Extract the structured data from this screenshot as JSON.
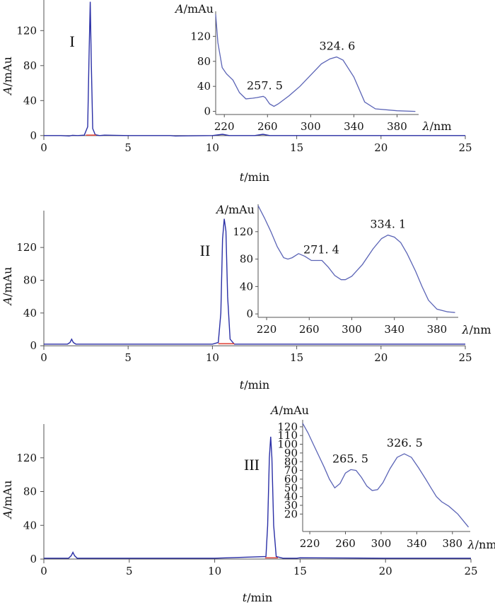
{
  "chart_data": [
    {
      "type": "line",
      "panel_label": "I",
      "xlabel": {
        "var": "t",
        "unit": "/min"
      },
      "ylabel": {
        "var": "A",
        "unit": "/mAu"
      },
      "xlim": [
        0,
        25
      ],
      "ylim": [
        -5,
        155
      ],
      "xticks": [
        0,
        5,
        10,
        15,
        20,
        25
      ],
      "yticks": [
        0,
        40,
        80,
        120
      ],
      "series": [
        {
          "name": "chromatogram",
          "x": [
            0,
            1,
            1.5,
            1.7,
            2.0,
            2.4,
            2.6,
            2.68,
            2.75,
            2.82,
            2.9,
            3.05,
            3.3,
            3.6,
            5,
            7.5,
            7.8,
            10,
            10.6,
            11.0,
            12.5,
            13.0,
            13.4,
            14.5,
            20,
            25
          ],
          "y": [
            0,
            0,
            -0.5,
            0.3,
            0,
            0.5,
            10,
            90,
            153,
            80,
            8,
            1,
            0,
            0.5,
            0,
            0,
            -0.5,
            0,
            1.5,
            0,
            0,
            1.5,
            0,
            0,
            0,
            0
          ]
        },
        {
          "name": "baseline",
          "x": [
            2.5,
            3.1
          ],
          "y": [
            0.5,
            0.5
          ]
        }
      ],
      "inset": {
        "type": "line",
        "xlabel": {
          "var": "λ",
          "unit": "/nm"
        },
        "ylabel": {
          "var": "A",
          "unit": "/mAu"
        },
        "xlim": [
          212,
          400
        ],
        "ylim": [
          -5,
          160
        ],
        "xticks": [
          220,
          260,
          300,
          340,
          380
        ],
        "yticks": [
          0,
          40,
          80,
          120
        ],
        "peak_labels": [
          {
            "x": 257.5,
            "y": 24,
            "text": "257. 5"
          },
          {
            "x": 324.6,
            "y": 87,
            "text": "324. 6"
          }
        ],
        "series": [
          {
            "name": "UV spectrum",
            "x": [
              212,
              214,
              218,
              222,
              228,
              234,
              240,
              246,
              250,
              256,
              258,
              262,
              266,
              270,
              280,
              290,
              300,
              310,
              318,
              324,
              330,
              340,
              350,
              360,
              380,
              397
            ],
            "y": [
              155,
              110,
              70,
              60,
              50,
              30,
              20,
              21,
              22,
              24,
              22,
              12,
              8,
              12,
              25,
              40,
              58,
              76,
              84,
              87,
              82,
              55,
              15,
              4,
              1,
              0
            ]
          }
        ]
      }
    },
    {
      "type": "line",
      "panel_label": "II",
      "xlabel": {
        "var": "t",
        "unit": "/min"
      },
      "ylabel": {
        "var": "A",
        "unit": "/mAu"
      },
      "xlim": [
        0,
        25
      ],
      "ylim": [
        -5,
        165
      ],
      "xticks": [
        0,
        5,
        10,
        15,
        20,
        25
      ],
      "yticks": [
        0,
        40,
        80,
        120
      ],
      "series": [
        {
          "name": "chromatogram",
          "x": [
            0,
            1.4,
            1.55,
            1.65,
            1.75,
            1.9,
            2.2,
            5,
            10,
            10.35,
            10.5,
            10.6,
            10.7,
            10.8,
            10.9,
            11.05,
            11.3,
            12,
            20,
            25
          ],
          "y": [
            2,
            2,
            4,
            8,
            4,
            2,
            2,
            2,
            2,
            4,
            40,
            130,
            155,
            140,
            60,
            8,
            2,
            2,
            2,
            2
          ]
        },
        {
          "name": "baseline",
          "x": [
            10.35,
            11.3
          ],
          "y": [
            2.5,
            2.5
          ]
        }
      ],
      "inset": {
        "type": "line",
        "xlabel": {
          "var": "λ",
          "unit": "/nm"
        },
        "ylabel": {
          "var": "A",
          "unit": "/mAu"
        },
        "xlim": [
          212,
          400
        ],
        "ylim": [
          -5,
          160
        ],
        "xticks": [
          220,
          260,
          300,
          340,
          380
        ],
        "yticks": [
          0,
          40,
          80,
          120
        ],
        "peak_labels": [
          {
            "x": 271.4,
            "y": 78,
            "text": "271. 4"
          },
          {
            "x": 334.1,
            "y": 115,
            "text": "334. 1"
          }
        ],
        "series": [
          {
            "name": "UV spectrum",
            "x": [
              212,
              218,
              224,
              230,
              236,
              240,
              244,
              250,
              256,
              262,
              268,
              272,
              278,
              284,
              290,
              294,
              300,
              310,
              320,
              328,
              334,
              340,
              346,
              352,
              360,
              366,
              372,
              380,
              390,
              397
            ],
            "y": [
              158,
              140,
              120,
              98,
              82,
              80,
              82,
              88,
              84,
              78,
              78,
              78,
              68,
              56,
              50,
              50,
              55,
              72,
              95,
              110,
              115,
              112,
              104,
              88,
              62,
              40,
              20,
              7,
              3,
              2
            ]
          }
        ]
      }
    },
    {
      "type": "line",
      "panel_label": "III",
      "xlabel": {
        "var": "t",
        "unit": "/min"
      },
      "ylabel": {
        "var": "A",
        "unit": "/mAu"
      },
      "xlim": [
        0,
        25
      ],
      "ylim": [
        -5,
        160
      ],
      "xticks": [
        0,
        5,
        10,
        15,
        20,
        25
      ],
      "yticks": [
        0,
        40,
        80,
        120
      ],
      "series": [
        {
          "name": "chromatogram",
          "x": [
            0,
            1.45,
            1.6,
            1.7,
            1.8,
            1.95,
            2.3,
            5,
            10,
            13.0,
            13.1,
            13.2,
            13.28,
            13.35,
            13.45,
            13.6,
            14.0,
            14.8,
            15.0,
            20,
            25
          ],
          "y": [
            1,
            1,
            4,
            8,
            4,
            1,
            1,
            1,
            1,
            3,
            40,
            120,
            145,
            120,
            40,
            3,
            1,
            1,
            1.5,
            1,
            1
          ]
        },
        {
          "name": "baseline",
          "x": [
            12.95,
            13.7
          ],
          "y": [
            1.5,
            1.5
          ]
        }
      ],
      "inset": {
        "type": "line",
        "xlabel": {
          "var": "λ",
          "unit": "/nm"
        },
        "ylabel": {
          "var": "A",
          "unit": "/mAu"
        },
        "xlim": [
          212,
          400
        ],
        "ylim": [
          0,
          128
        ],
        "xticks": [
          220,
          260,
          300,
          340,
          380
        ],
        "yticks": [
          20,
          30,
          40,
          50,
          60,
          70,
          80,
          90,
          100,
          110,
          120
        ],
        "peak_labels": [
          {
            "x": 265.5,
            "y": 71,
            "text": "265. 5"
          },
          {
            "x": 326.5,
            "y": 89,
            "text": "326. 5"
          }
        ],
        "series": [
          {
            "name": "UV spectrum",
            "x": [
              212,
              218,
              224,
              230,
              236,
              242,
              248,
              254,
              260,
              266,
              272,
              278,
              284,
              290,
              296,
              302,
              310,
              318,
              326,
              334,
              342,
              350,
              356,
              362,
              368,
              376,
              386,
              398
            ],
            "y": [
              124,
              113,
              100,
              87,
              74,
              60,
              50,
              55,
              67,
              71,
              70,
              62,
              52,
              47,
              48,
              56,
              72,
              85,
              89,
              85,
              73,
              60,
              50,
              40,
              34,
              29,
              20,
              5
            ]
          }
        ]
      }
    }
  ]
}
